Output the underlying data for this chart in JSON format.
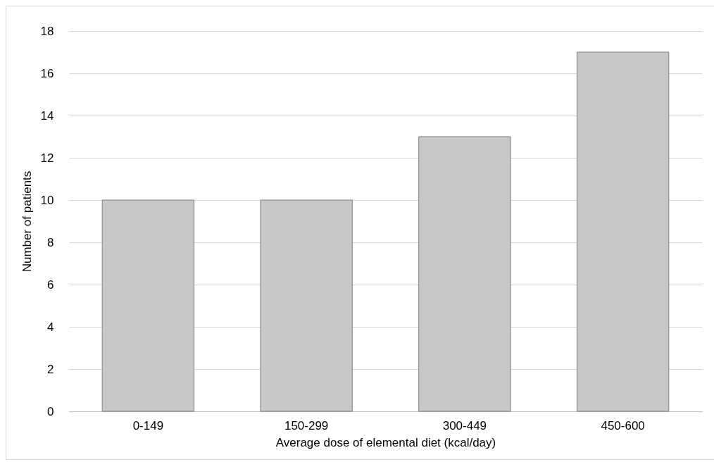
{
  "chart_data": {
    "type": "bar",
    "xlabel": "Average dose of elemental diet (kcal/day)",
    "ylabel": "Number of patients",
    "categories": [
      "0-149",
      "150-299",
      "300-449",
      "450-600"
    ],
    "values": [
      10,
      10,
      13,
      17
    ],
    "color": "#c8c8c8",
    "ylim": [
      0,
      18
    ],
    "yticks": [
      0,
      2,
      4,
      6,
      8,
      10,
      12,
      14,
      16,
      18
    ],
    "grid": "y"
  }
}
